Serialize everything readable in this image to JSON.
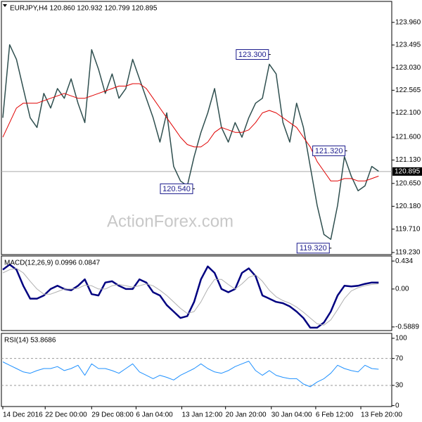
{
  "chart_data": [
    {
      "type": "line",
      "title": "EURJPY,H4  120.860 120.932 120.799 120.895",
      "watermark": "ActionForex.com",
      "x": [
        0,
        1,
        2,
        3,
        4,
        5,
        6,
        7,
        8,
        9,
        10,
        11,
        12,
        13,
        14,
        15,
        16,
        17,
        18,
        19,
        20,
        21,
        22,
        23,
        24,
        25,
        26,
        27,
        28,
        29,
        30,
        31,
        32,
        33,
        34,
        35,
        36,
        37,
        38,
        39,
        40,
        41,
        42,
        43,
        44,
        45,
        46,
        47,
        48,
        49,
        50,
        51,
        52,
        53,
        54,
        55
      ],
      "xlim": [
        0,
        56
      ],
      "ylim": [
        119.187,
        124.391
      ],
      "yticks": [
        {
          "value": 123.96,
          "label": "123.960"
        },
        {
          "value": 123.495,
          "label": "123.495"
        },
        {
          "value": 123.03,
          "label": "123.030"
        },
        {
          "value": 122.565,
          "label": "122.565"
        },
        {
          "value": 122.1,
          "label": "122.100"
        },
        {
          "value": 121.6,
          "label": "121.600"
        },
        {
          "value": 121.13,
          "label": "121.130"
        },
        {
          "value": 120.65,
          "label": "120.650"
        },
        {
          "value": 120.18,
          "label": "120.180"
        },
        {
          "value": 119.71,
          "label": "119.710"
        },
        {
          "value": 119.23,
          "label": "119.230"
        }
      ],
      "series": [
        {
          "color": "#2f4f4f",
          "width": 1.5,
          "values": [
            122.0,
            123.5,
            123.2,
            122.6,
            122.0,
            121.8,
            122.5,
            122.2,
            122.6,
            122.4,
            122.8,
            122.3,
            121.9,
            123.4,
            123.0,
            122.5,
            122.9,
            122.4,
            122.6,
            123.2,
            122.8,
            122.4,
            122.0,
            121.5,
            122.1,
            121.0,
            120.7,
            120.6,
            121.2,
            121.7,
            122.1,
            122.6,
            121.8,
            121.5,
            121.9,
            121.6,
            122.0,
            122.3,
            122.4,
            123.1,
            122.9,
            121.9,
            121.5,
            122.3,
            121.8,
            121.0,
            120.2,
            119.6,
            119.5,
            120.2,
            121.2,
            120.8,
            120.5,
            120.6,
            121.0,
            120.9
          ]
        },
        {
          "color": "#e00000",
          "width": 1,
          "values": [
            121.6,
            121.9,
            122.2,
            122.3,
            122.3,
            122.3,
            122.35,
            122.4,
            122.45,
            122.5,
            122.45,
            122.4,
            122.4,
            122.45,
            122.5,
            122.55,
            122.6,
            122.65,
            122.65,
            122.7,
            122.7,
            122.6,
            122.4,
            122.2,
            122.0,
            121.8,
            121.6,
            121.45,
            121.4,
            121.4,
            121.5,
            121.7,
            121.8,
            121.75,
            121.7,
            121.7,
            121.75,
            121.9,
            122.1,
            122.15,
            122.1,
            122.0,
            121.9,
            121.8,
            121.6,
            121.4,
            121.1,
            120.9,
            120.7,
            120.7,
            120.75,
            120.75,
            120.7,
            120.7,
            120.75,
            120.8
          ]
        }
      ],
      "last": {
        "value": 120.895,
        "label": "120.895"
      },
      "annotations": [
        {
          "label": "123.300",
          "value": 123.3,
          "x": 39.2
        },
        {
          "label": "121.320",
          "value": 121.32,
          "x": 50.4
        },
        {
          "label": "120.540",
          "value": 120.54,
          "x": 28.1
        },
        {
          "label": "119.320",
          "value": 119.32,
          "x": 48.1
        }
      ]
    },
    {
      "type": "line",
      "title": "MACD(12,26,9) 0.0996 0.0847",
      "ylim": [
        -0.645,
        0.512
      ],
      "yticks": [
        0.434,
        {
          "value": 0,
          "label": "0.00"
        },
        -0.5889
      ],
      "series": [
        {
          "color": "#000080",
          "width": 2.5,
          "values": [
            0.3,
            0.38,
            0.3,
            0.05,
            -0.15,
            -0.15,
            -0.1,
            0.0,
            0.05,
            0.0,
            -0.02,
            0.05,
            0.15,
            -0.08,
            -0.1,
            0.1,
            0.12,
            0.05,
            0.0,
            0.0,
            0.15,
            0.1,
            -0.05,
            -0.1,
            -0.25,
            -0.35,
            -0.45,
            -0.42,
            -0.2,
            0.15,
            0.35,
            0.25,
            0.0,
            -0.05,
            0.0,
            0.25,
            0.32,
            0.2,
            -0.1,
            -0.15,
            -0.2,
            -0.22,
            -0.27,
            -0.35,
            -0.45,
            -0.6,
            -0.6,
            -0.52,
            -0.35,
            -0.1,
            0.05,
            0.04,
            0.05,
            0.08,
            0.1,
            0.1
          ]
        },
        {
          "color": "#b0b0b0",
          "width": 1,
          "values": [
            0.25,
            0.3,
            0.32,
            0.25,
            0.12,
            0.0,
            -0.08,
            -0.08,
            -0.04,
            0.0,
            0.0,
            0.01,
            0.06,
            0.05,
            0.0,
            0.0,
            0.05,
            0.07,
            0.05,
            0.03,
            0.05,
            0.08,
            0.05,
            -0.02,
            -0.1,
            -0.2,
            -0.3,
            -0.38,
            -0.35,
            -0.2,
            0.0,
            0.15,
            0.15,
            0.07,
            0.0,
            0.08,
            0.18,
            0.22,
            0.12,
            -0.02,
            -0.12,
            -0.18,
            -0.22,
            -0.28,
            -0.36,
            -0.45,
            -0.54,
            -0.56,
            -0.48,
            -0.32,
            -0.15,
            -0.03,
            0.02,
            0.05,
            0.07,
            0.08
          ]
        }
      ]
    },
    {
      "type": "line",
      "title": "RSI(14) 53.8686",
      "ylim": [
        -1.4,
        107.3
      ],
      "yticks": [
        100,
        70,
        30,
        0
      ],
      "levels": [
        70,
        30
      ],
      "xticks": [
        {
          "value": 0,
          "label": "14 Dec 2016"
        },
        {
          "value": 6.2,
          "label": "22 Dec 00:00"
        },
        {
          "value": 13,
          "label": "29 Dec 08:00"
        },
        {
          "value": 19.5,
          "label": "6 Jan 04:00"
        },
        {
          "value": 26.2,
          "label": "13 Jan 12:00"
        },
        {
          "value": 32.6,
          "label": "20 Jan 20:00"
        },
        {
          "value": 39.3,
          "label": "30 Jan 04:00"
        },
        {
          "value": 45.8,
          "label": "6 Feb 12:00"
        },
        {
          "value": 52.4,
          "label": "13 Feb 20:00"
        }
      ],
      "series": [
        {
          "color": "#1e90ff",
          "width": 1,
          "values": [
            65,
            60,
            55,
            50,
            48,
            52,
            55,
            55,
            58,
            52,
            55,
            60,
            45,
            62,
            55,
            55,
            52,
            48,
            55,
            62,
            50,
            45,
            40,
            45,
            42,
            38,
            45,
            50,
            55,
            62,
            55,
            50,
            48,
            52,
            58,
            62,
            66,
            52,
            45,
            52,
            45,
            42,
            40,
            40,
            32,
            28,
            35,
            40,
            48,
            60,
            55,
            52,
            50,
            60,
            55,
            54
          ]
        }
      ]
    }
  ]
}
